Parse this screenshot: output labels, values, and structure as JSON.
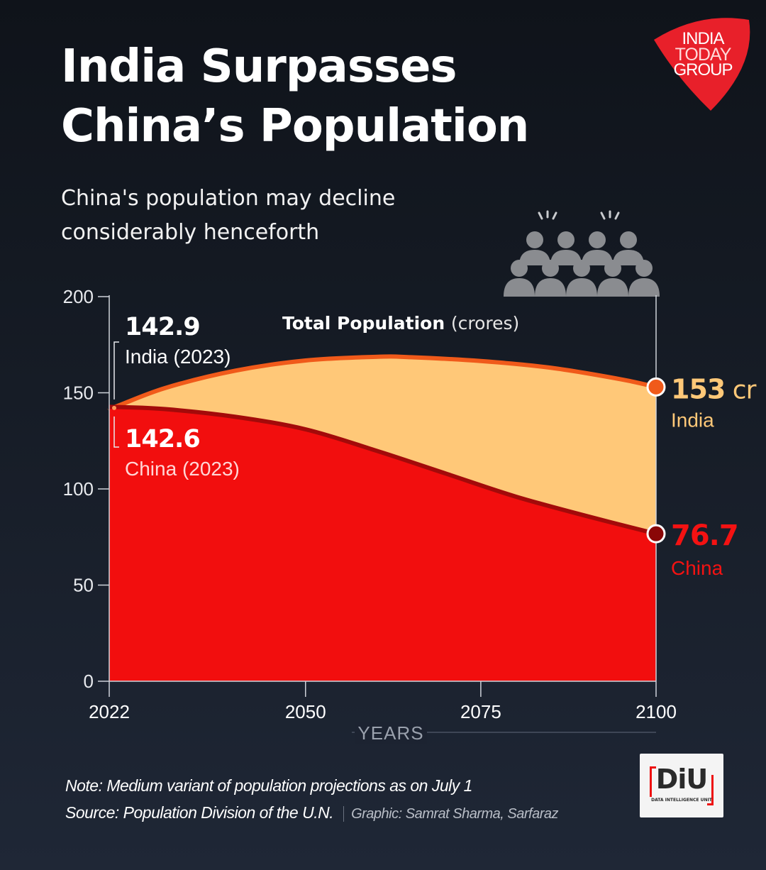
{
  "header": {
    "title_line1": "India Surpasses",
    "title_line2": "China’s Population",
    "subtitle_line1": "China's population may decline",
    "subtitle_line2": "considerably henceforth"
  },
  "logo": {
    "line1": "INDIA",
    "line2": "TODAY",
    "line3": "GROUP",
    "color": "#e8202a"
  },
  "icons": {
    "crowd": "crowd-icon"
  },
  "chart_data": {
    "type": "area",
    "title_bold": "Total Population",
    "title_unit": "(crores)",
    "xlabel": "YEARS",
    "ylabel": "",
    "x_ticks": [
      "2022",
      "2050",
      "2075",
      "2100"
    ],
    "y_ticks": [
      "0",
      "50",
      "100",
      "150",
      "200"
    ],
    "xlim": [
      2022,
      2100
    ],
    "ylim": [
      0,
      200
    ],
    "series": [
      {
        "name": "India",
        "color": "#ffc878",
        "line_color": "#f05a1a",
        "x": [
          2022,
          2023,
          2030,
          2040,
          2050,
          2060,
          2065,
          2075,
          2085,
          2095,
          2100
        ],
        "values": [
          142.1,
          142.9,
          152.5,
          161.5,
          166.8,
          168.7,
          168.5,
          166.5,
          163,
          157,
          153
        ]
      },
      {
        "name": "China",
        "color": "#f20e0e",
        "line_color": "#a30a0a",
        "x": [
          2022,
          2023,
          2030,
          2040,
          2050,
          2060,
          2070,
          2080,
          2090,
          2100
        ],
        "values": [
          142.6,
          142.6,
          141.5,
          137.5,
          131,
          120,
          108,
          96,
          86,
          76.7
        ]
      }
    ],
    "annotations": {
      "india_start_value": "142.9",
      "india_start_label": "India (2023)",
      "china_start_value": "142.6",
      "china_start_label": "China (2023)",
      "india_end_value": "153",
      "india_end_unit": "cr",
      "india_end_label": "India",
      "china_end_value": "76.7",
      "china_end_label": "China"
    },
    "grid": false
  },
  "footer": {
    "note": "Note: Medium variant of population projections as on July 1",
    "source": "Source: Population Division of the U.N.",
    "graphic": "Graphic: Samrat Sharma, Sarfaraz"
  },
  "diu_logo": {
    "big": "DiU",
    "small": "DATA INTELLIGENCE UNIT"
  }
}
